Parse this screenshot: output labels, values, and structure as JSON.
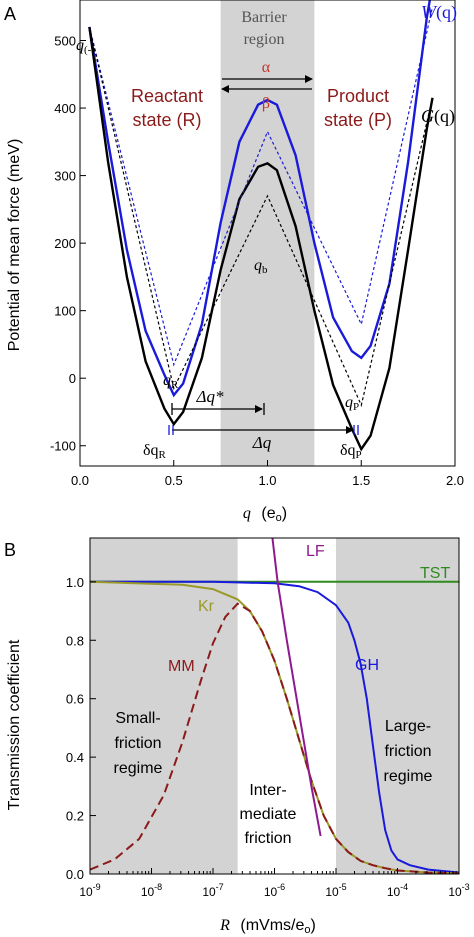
{
  "chart_data": [
    {
      "panel_label": "A",
      "type": "line",
      "xlabel": "q",
      "xlabel_unit": "(e",
      "xlabel_unit_sub": "o",
      "xlabel_unit_close": ")",
      "ylabel": "Potential of mean force (meV)",
      "xlim": [
        0,
        2.0
      ],
      "ylim": [
        -130,
        560
      ],
      "x_ticks": [
        "0.0",
        "0.5",
        "1.0",
        "1.5",
        "2.0"
      ],
      "x_tick_values": [
        0,
        0.5,
        1.0,
        1.5,
        2.0
      ],
      "y_ticks": [
        "-100",
        "0",
        "100",
        "200",
        "300",
        "400",
        "500"
      ],
      "y_tick_values": [
        -100,
        0,
        100,
        200,
        300,
        400,
        500
      ],
      "barrier_region": {
        "label_line1": "Barrier",
        "label_line2": "region",
        "x_range": [
          0.75,
          1.25
        ]
      },
      "states": {
        "reactant_line1": "Reactant",
        "reactant_line2": "state (R)",
        "product_line1": "Product",
        "product_line2": "state (P)",
        "alpha": "α",
        "beta": "β"
      },
      "series": [
        {
          "name": "W(q)",
          "name_main": "W",
          "name_arg": "(q)",
          "color": "#1a1adb",
          "style": "solid",
          "x": [
            0.05,
            0.15,
            0.25,
            0.35,
            0.45,
            0.5,
            0.55,
            0.65,
            0.75,
            0.85,
            0.95,
            1.0,
            1.05,
            1.15,
            1.25,
            1.35,
            1.45,
            1.5,
            1.55,
            1.65,
            1.75,
            1.85,
            1.9
          ],
          "y": [
            520,
            350,
            190,
            70,
            5,
            -25,
            -8,
            80,
            230,
            350,
            405,
            412,
            405,
            330,
            200,
            90,
            40,
            30,
            48,
            140,
            320,
            535,
            615
          ]
        },
        {
          "name": "G(q)",
          "name_main": "G",
          "name_arg": "(q)",
          "color": "#000000",
          "style": "solid",
          "x": [
            0.05,
            0.15,
            0.25,
            0.35,
            0.45,
            0.5,
            0.55,
            0.65,
            0.75,
            0.85,
            0.95,
            1.0,
            1.05,
            1.15,
            1.25,
            1.35,
            1.45,
            1.5,
            1.55,
            1.65,
            1.75,
            1.85,
            1.88
          ],
          "y": [
            520,
            320,
            150,
            25,
            -45,
            -68,
            -50,
            30,
            160,
            265,
            313,
            318,
            308,
            225,
            100,
            -10,
            -75,
            -105,
            -85,
            15,
            190,
            370,
            415
          ]
        },
        {
          "name": "W dotted",
          "color": "#1a1adb",
          "style": "dotted",
          "x": [
            0.05,
            0.5,
            1.0,
            1.5,
            1.88
          ],
          "y": [
            520,
            20,
            365,
            80,
            550
          ]
        },
        {
          "name": "G dotted",
          "color": "#000000",
          "style": "dotted",
          "x": [
            0.05,
            0.5,
            1.0,
            1.5,
            1.88
          ],
          "y": [
            520,
            -15,
            270,
            -40,
            415
          ]
        }
      ],
      "annotations": {
        "q_minus": "q",
        "q_minus_sub": "(-)",
        "q_R": "q",
        "q_R_sub": "R",
        "q_b": "q",
        "q_b_sub": "b",
        "q_P": "q",
        "q_P_sub": "P",
        "delta_q_star": "Δq*",
        "delta_q": "Δq",
        "delta_q_R": "δq",
        "delta_q_R_sub": "R",
        "delta_q_P": "δq",
        "delta_q_P_sub": "P"
      }
    },
    {
      "panel_label": "B",
      "type": "line",
      "xlabel": "R",
      "xlabel_unit": "(mVms/e",
      "xlabel_unit_sub": "o",
      "xlabel_unit_close": ")",
      "ylabel": "Transmission coefficient",
      "xscale": "log",
      "xlim_log10": [
        -9,
        -3
      ],
      "ylim": [
        0,
        1.15
      ],
      "x_ticks_base": "10",
      "x_ticks_exp": [
        "-9",
        "-8",
        "-7",
        "-6",
        "-5",
        "-4",
        "-3"
      ],
      "y_ticks": [
        "0.0",
        "0.2",
        "0.4",
        "0.6",
        "0.8",
        "1.0"
      ],
      "y_tick_values": [
        0,
        0.2,
        0.4,
        0.6,
        0.8,
        1.0
      ],
      "regions": {
        "small_line1": "Small-",
        "small_line2": "friction",
        "small_line3": "regime",
        "inter_line1": "Inter-",
        "inter_line2": "mediate",
        "inter_line3": "friction",
        "large_line1": "Large-",
        "large_line2": "friction",
        "large_line3": "regime",
        "small_range_log10": [
          -9,
          -6.6
        ],
        "large_range_log10": [
          -5,
          -3
        ]
      },
      "series": [
        {
          "name": "TST",
          "color": "#2e8b1e",
          "style": "solid",
          "log10_x": [
            -9,
            -3
          ],
          "y": [
            1.0,
            1.0
          ]
        },
        {
          "name": "GH",
          "color": "#1a1adb",
          "style": "solid",
          "log10_x": [
            -9,
            -7,
            -6,
            -5.6,
            -5.3,
            -5.0,
            -4.8,
            -4.7,
            -4.6,
            -4.5,
            -4.4,
            -4.3,
            -4.2,
            -4.1,
            -4.0,
            -3.8,
            -3.5,
            -3.0
          ],
          "y": [
            1.0,
            1.0,
            0.995,
            0.985,
            0.965,
            0.92,
            0.86,
            0.8,
            0.72,
            0.6,
            0.44,
            0.28,
            0.15,
            0.08,
            0.05,
            0.03,
            0.015,
            0.005
          ]
        },
        {
          "name": "Kr",
          "color": "#9a9a2a",
          "style": "solid",
          "log10_x": [
            -9,
            -7.5,
            -7.0,
            -6.6,
            -6.4,
            -6.2,
            -6.0,
            -5.8,
            -5.6,
            -5.4,
            -5.2,
            -5.0,
            -4.8,
            -4.6,
            -4.4,
            -4.2,
            -4.0,
            -3.5,
            -3.0
          ],
          "y": [
            1.0,
            0.99,
            0.975,
            0.94,
            0.9,
            0.83,
            0.73,
            0.6,
            0.46,
            0.32,
            0.2,
            0.12,
            0.075,
            0.045,
            0.03,
            0.02,
            0.012,
            0.005,
            0.002
          ]
        },
        {
          "name": "MM",
          "color": "#8b1a1a",
          "style": "dashed",
          "log10_x": [
            -9,
            -8.6,
            -8.2,
            -7.8,
            -7.5,
            -7.2,
            -7.0,
            -6.8,
            -6.6,
            -6.4,
            -6.2,
            -6.0,
            -5.8,
            -5.6,
            -5.4,
            -5.2,
            -5.0,
            -4.8,
            -4.6,
            -4.4,
            -4.2,
            -4.0,
            -3.5,
            -3.0
          ],
          "y": [
            0.015,
            0.05,
            0.12,
            0.27,
            0.45,
            0.66,
            0.79,
            0.88,
            0.925,
            0.9,
            0.83,
            0.73,
            0.6,
            0.46,
            0.32,
            0.2,
            0.12,
            0.075,
            0.045,
            0.03,
            0.02,
            0.012,
            0.005,
            0.002
          ]
        },
        {
          "name": "LF",
          "color": "#8e1a8e",
          "style": "solid",
          "log10_x": [
            -6.05,
            -5.95,
            -5.8,
            -5.6,
            -5.4,
            -5.25
          ],
          "y": [
            1.18,
            1.0,
            0.8,
            0.55,
            0.3,
            0.13
          ]
        }
      ]
    }
  ]
}
